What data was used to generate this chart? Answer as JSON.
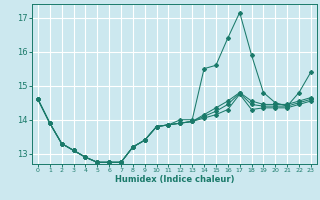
{
  "xlabel": "Humidex (Indice chaleur)",
  "ylabel": "",
  "background_color": "#cce8ef",
  "grid_color": "#ffffff",
  "line_color": "#1a7a6a",
  "xlim": [
    -0.5,
    23.5
  ],
  "ylim": [
    12.7,
    17.4
  ],
  "yticks": [
    13,
    14,
    15,
    16,
    17
  ],
  "xticks": [
    0,
    1,
    2,
    3,
    4,
    5,
    6,
    7,
    8,
    9,
    10,
    11,
    12,
    13,
    14,
    15,
    16,
    17,
    18,
    19,
    20,
    21,
    22,
    23
  ],
  "series": [
    [
      14.6,
      13.9,
      13.3,
      13.1,
      12.9,
      12.75,
      12.75,
      12.75,
      13.2,
      13.4,
      13.8,
      13.85,
      14.0,
      14.0,
      15.5,
      15.6,
      16.4,
      17.15,
      15.9,
      14.8,
      14.5,
      14.4,
      14.8,
      15.4
    ],
    [
      14.6,
      13.9,
      13.3,
      13.1,
      12.9,
      12.75,
      12.75,
      12.75,
      13.2,
      13.4,
      13.8,
      13.85,
      13.9,
      13.95,
      14.05,
      14.15,
      14.3,
      14.75,
      14.3,
      14.35,
      14.35,
      14.35,
      14.45,
      14.55
    ],
    [
      14.6,
      13.9,
      13.3,
      13.1,
      12.9,
      12.75,
      12.75,
      12.75,
      13.2,
      13.4,
      13.8,
      13.85,
      13.9,
      13.95,
      14.1,
      14.25,
      14.45,
      14.78,
      14.45,
      14.4,
      14.4,
      14.4,
      14.5,
      14.6
    ],
    [
      14.6,
      13.9,
      13.3,
      13.1,
      12.9,
      12.75,
      12.75,
      12.75,
      13.2,
      13.4,
      13.8,
      13.85,
      13.9,
      13.95,
      14.15,
      14.35,
      14.55,
      14.8,
      14.55,
      14.45,
      14.45,
      14.45,
      14.55,
      14.65
    ]
  ]
}
